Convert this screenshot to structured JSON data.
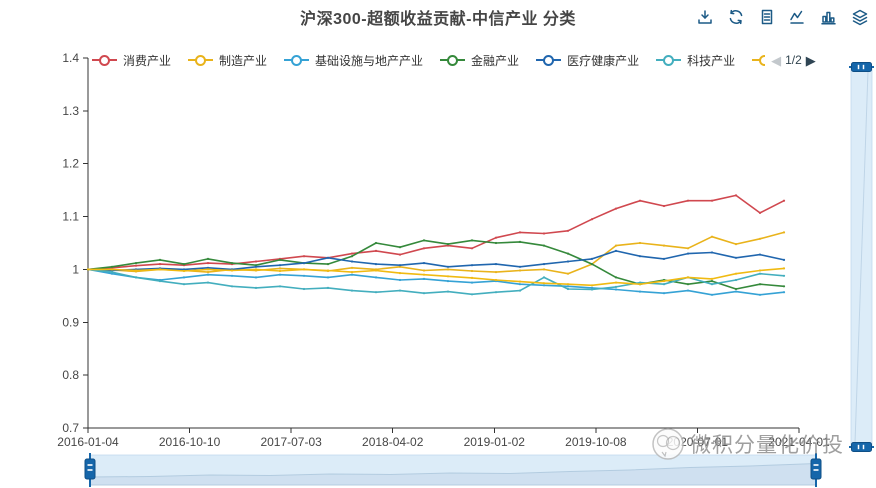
{
  "title": "沪深300-超额收益贡献-中信产业 分类",
  "toolbar": {
    "icons": [
      "save-image-icon",
      "restore-icon",
      "data-view-icon",
      "switch-line-icon",
      "switch-bar-icon",
      "stack-icon"
    ]
  },
  "legend": {
    "items": [
      {
        "label": "消费产业",
        "color": "#d0484f",
        "truncated": false
      },
      {
        "label": "制造产业",
        "color": "#e9b31b",
        "truncated": false
      },
      {
        "label": "基础设施与地产产业",
        "color": "#35a2d5",
        "truncated": false
      },
      {
        "label": "金融产业",
        "color": "#35893b",
        "truncated": false
      },
      {
        "label": "医疗健康产业",
        "color": "#2066ae",
        "truncated": false
      },
      {
        "label": "科技产业",
        "color": "#43aebe",
        "truncated": false
      },
      {
        "label": "",
        "color": "#e9b31b",
        "truncated": true
      }
    ],
    "page_indicator": "1/2",
    "prev_arrow": "◀",
    "next_arrow": "▶"
  },
  "watermark": {
    "text": "微积分量化价投"
  },
  "colors": {
    "axis": "#333333",
    "axis_label": "#464646",
    "toolbox_icon": "#1c5a86",
    "slider_handle": "#1566aa",
    "slider_fill": "#eaf4fc",
    "slider_border": "#cfe2f1",
    "slider_shadow_fill": "#d9e6f2",
    "slider_shadow_line": "#b7cddf"
  },
  "chart_data": {
    "type": "line",
    "title": "沪深300-超额收益贡献-中信产业 分类",
    "xlabel": "",
    "ylabel": "",
    "ylim": [
      0.7,
      1.4
    ],
    "y_ticks": [
      "0.7",
      "0.8",
      "0.9",
      "1",
      "1.1",
      "1.2",
      "1.3",
      "1.4"
    ],
    "x_tick_labels": [
      "2016-01-04",
      "2016-10-10",
      "2017-07-03",
      "2018-04-02",
      "2019-01-02",
      "2019-10-08",
      "2020-07-01",
      "2021-04-01"
    ],
    "grid": false,
    "legend_position": "top",
    "note": "values are cumulative excess-return contribution ratios, baseline 1.0; 7th series legend label is cut off (legend page 1/2)",
    "series": [
      {
        "name": "消费产业",
        "color": "#d0484f",
        "values": [
          1.0,
          1.003,
          1.007,
          1.01,
          1.008,
          1.012,
          1.01,
          1.015,
          1.02,
          1.025,
          1.022,
          1.03,
          1.035,
          1.028,
          1.04,
          1.045,
          1.04,
          1.06,
          1.07,
          1.068,
          1.073,
          1.095,
          1.115,
          1.13,
          1.12,
          1.13,
          1.13,
          1.14,
          1.107,
          1.13
        ]
      },
      {
        "name": "制造产业",
        "color": "#e9b31b",
        "values": [
          1.0,
          0.999,
          0.996,
          1.0,
          0.998,
          0.995,
          1.0,
          0.998,
          1.002,
          1.0,
          0.997,
          1.003,
          1.0,
          1.005,
          0.998,
          1.0,
          0.997,
          0.995,
          0.998,
          1.0,
          0.992,
          1.01,
          1.045,
          1.05,
          1.045,
          1.04,
          1.062,
          1.048,
          1.058,
          1.07
        ]
      },
      {
        "name": "基础设施与地产产业",
        "color": "#35a2d5",
        "values": [
          1.0,
          0.992,
          0.985,
          0.98,
          0.985,
          0.99,
          0.988,
          0.985,
          0.99,
          0.988,
          0.985,
          0.99,
          0.985,
          0.98,
          0.982,
          0.978,
          0.975,
          0.978,
          0.972,
          0.97,
          0.968,
          0.965,
          0.962,
          0.958,
          0.955,
          0.96,
          0.952,
          0.958,
          0.952,
          0.957
        ]
      },
      {
        "name": "金融产业",
        "color": "#35893b",
        "values": [
          1.0,
          1.005,
          1.012,
          1.018,
          1.01,
          1.02,
          1.012,
          1.008,
          1.018,
          1.012,
          1.01,
          1.025,
          1.05,
          1.042,
          1.055,
          1.048,
          1.055,
          1.05,
          1.052,
          1.045,
          1.03,
          1.01,
          0.985,
          0.972,
          0.98,
          0.972,
          0.978,
          0.963,
          0.972,
          0.968
        ]
      },
      {
        "name": "医疗健康产业",
        "color": "#2066ae",
        "values": [
          1.0,
          0.998,
          1.0,
          1.002,
          1.0,
          1.003,
          1.0,
          1.005,
          1.008,
          1.012,
          1.022,
          1.015,
          1.01,
          1.008,
          1.012,
          1.005,
          1.008,
          1.01,
          1.005,
          1.01,
          1.015,
          1.02,
          1.035,
          1.025,
          1.02,
          1.03,
          1.032,
          1.022,
          1.028,
          1.018
        ]
      },
      {
        "name": "科技产业",
        "color": "#43aebe",
        "values": [
          1.0,
          0.995,
          0.985,
          0.978,
          0.972,
          0.975,
          0.968,
          0.965,
          0.968,
          0.963,
          0.965,
          0.96,
          0.957,
          0.96,
          0.955,
          0.958,
          0.953,
          0.957,
          0.96,
          0.985,
          0.963,
          0.962,
          0.967,
          0.975,
          0.972,
          0.985,
          0.972,
          0.98,
          0.992,
          0.988
        ]
      },
      {
        "name": "",
        "color": "#f0ba12",
        "values": [
          1.0,
          1.0,
          0.998,
          1.0,
          0.997,
          1.0,
          0.998,
          1.0,
          0.997,
          1.0,
          0.998,
          0.995,
          0.998,
          0.993,
          0.99,
          0.987,
          0.984,
          0.98,
          0.977,
          0.974,
          0.972,
          0.97,
          0.975,
          0.972,
          0.978,
          0.985,
          0.982,
          0.992,
          0.998,
          1.002
        ]
      }
    ]
  }
}
